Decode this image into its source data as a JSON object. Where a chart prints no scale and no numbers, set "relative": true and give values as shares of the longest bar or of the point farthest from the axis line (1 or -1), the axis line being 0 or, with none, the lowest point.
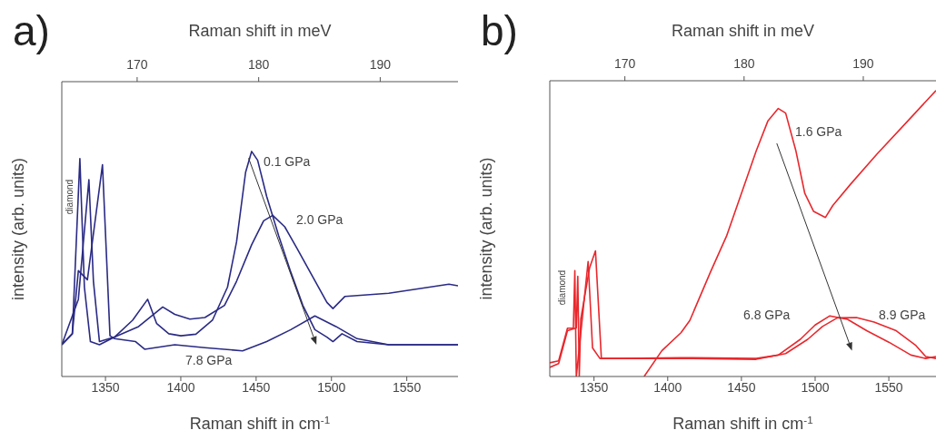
{
  "chart_data": [
    {
      "type": "line",
      "title": "a)",
      "xlabel": "Raman shift in cm$^{-1}$",
      "x2label": "Raman shift in meV",
      "ylabel": "intensity (arb. units)",
      "relative": true,
      "xlim": [
        1321,
        1584
      ],
      "xticks": [
        1350,
        1400,
        1450,
        1500,
        1550
      ],
      "x2lim": [
        163.8,
        196.4
      ],
      "x2ticks": [
        170,
        180,
        190
      ],
      "annotations": [
        "diamond"
      ],
      "series": [
        {
          "name": "0.1 GPa",
          "color": "#2a2a85",
          "x": [
            1321,
            1328,
            1333,
            1336,
            1340,
            1346,
            1356,
            1368,
            1378,
            1384,
            1392,
            1400,
            1410,
            1421,
            1431,
            1437,
            1443,
            1447,
            1451,
            1457,
            1465,
            1473,
            1481,
            1489,
            1497,
            1501,
            1507,
            1517,
            1538,
            1584
          ],
          "values": [
            0.141,
            0.19,
            0.968,
            0.397,
            0.155,
            0.141,
            0.175,
            0.25,
            0.343,
            0.235,
            0.19,
            0.181,
            0.188,
            0.25,
            0.397,
            0.598,
            0.907,
            1.0,
            0.961,
            0.8,
            0.625,
            0.464,
            0.316,
            0.208,
            0.175,
            0.155,
            0.19,
            0.155,
            0.141,
            0.141
          ]
        },
        {
          "name": "2.0 GPa",
          "color": "#2a2a85",
          "x": [
            1321,
            1332,
            1339,
            1342,
            1346,
            1356,
            1372,
            1388,
            1396,
            1406,
            1416,
            1429,
            1437,
            1447,
            1455,
            1461,
            1469,
            1477,
            1487,
            1497,
            1501,
            1509,
            1538,
            1578,
            1584
          ],
          "values": [
            0.141,
            0.343,
            0.874,
            0.423,
            0.155,
            0.175,
            0.222,
            0.309,
            0.276,
            0.255,
            0.262,
            0.316,
            0.423,
            0.585,
            0.692,
            0.716,
            0.665,
            0.571,
            0.45,
            0.329,
            0.302,
            0.356,
            0.37,
            0.41,
            0.403
          ]
        },
        {
          "name": "7.8 GPa",
          "color": "#2a2a85",
          "x": [
            1321,
            1328,
            1332,
            1338,
            1348,
            1353,
            1356,
            1370,
            1376,
            1396,
            1416,
            1441,
            1457,
            1473,
            1489,
            1503,
            1517,
            1538,
            1584
          ],
          "values": [
            0.141,
            0.19,
            0.47,
            0.43,
            0.941,
            0.181,
            0.168,
            0.155,
            0.121,
            0.141,
            0.128,
            0.114,
            0.155,
            0.208,
            0.269,
            0.222,
            0.168,
            0.141,
            0.141
          ]
        }
      ]
    },
    {
      "type": "line",
      "title": "b)",
      "xlabel": "Raman shift in cm$^{-1}$",
      "x2label": "Raman shift in meV",
      "ylabel": "intensity (arb. units)",
      "relative": true,
      "xlim": [
        1320,
        1582
      ],
      "xticks": [
        1350,
        1400,
        1450,
        1500,
        1550
      ],
      "x2lim": [
        163.7,
        196.1
      ],
      "x2ticks": [
        170,
        180,
        190
      ],
      "annotations": [
        "diamond"
      ],
      "series": [
        {
          "name": "1.6 GPa",
          "color": "#e8282d",
          "x": [
            1384,
            1396,
            1409,
            1415,
            1429,
            1440,
            1450,
            1460,
            1468,
            1475,
            1480,
            1487,
            1493,
            1499,
            1507,
            1512,
            1524,
            1542,
            1563,
            1582
          ],
          "values": [
            0.0,
            0.09,
            0.153,
            0.196,
            0.365,
            0.492,
            0.64,
            0.788,
            0.894,
            0.937,
            0.921,
            0.788,
            0.64,
            0.577,
            0.556,
            0.598,
            0.672,
            0.778,
            0.894,
            1.0
          ]
        },
        {
          "name": "6.8 GPa",
          "color": "#e8282d",
          "x": [
            1320,
            1326,
            1332,
            1336,
            1337,
            1338,
            1342,
            1346,
            1349,
            1354,
            1368,
            1409,
            1460,
            1475,
            1490,
            1500,
            1510,
            1522,
            1535,
            1550,
            1565,
            1575,
            1582
          ],
          "values": [
            0.048,
            0.055,
            0.169,
            0.169,
            0.37,
            0.0,
            0.2,
            0.402,
            0.1,
            0.063,
            0.063,
            0.066,
            0.063,
            0.075,
            0.13,
            0.18,
            0.212,
            0.2,
            0.16,
            0.12,
            0.075,
            0.063,
            0.07
          ]
        },
        {
          "name": "8.9 GPa",
          "color": "#e8282d",
          "x": [
            1320,
            1326,
            1332,
            1338,
            1339,
            1340,
            1341,
            1347,
            1351,
            1355,
            1368,
            1409,
            1460,
            1480,
            1495,
            1505,
            1515,
            1528,
            1540,
            1555,
            1568,
            1575,
            1582
          ],
          "values": [
            0.032,
            0.045,
            0.16,
            0.17,
            0.35,
            0.0,
            0.2,
            0.38,
            0.439,
            0.063,
            0.063,
            0.063,
            0.06,
            0.08,
            0.13,
            0.175,
            0.205,
            0.206,
            0.19,
            0.16,
            0.11,
            0.07,
            0.063
          ]
        }
      ]
    }
  ]
}
